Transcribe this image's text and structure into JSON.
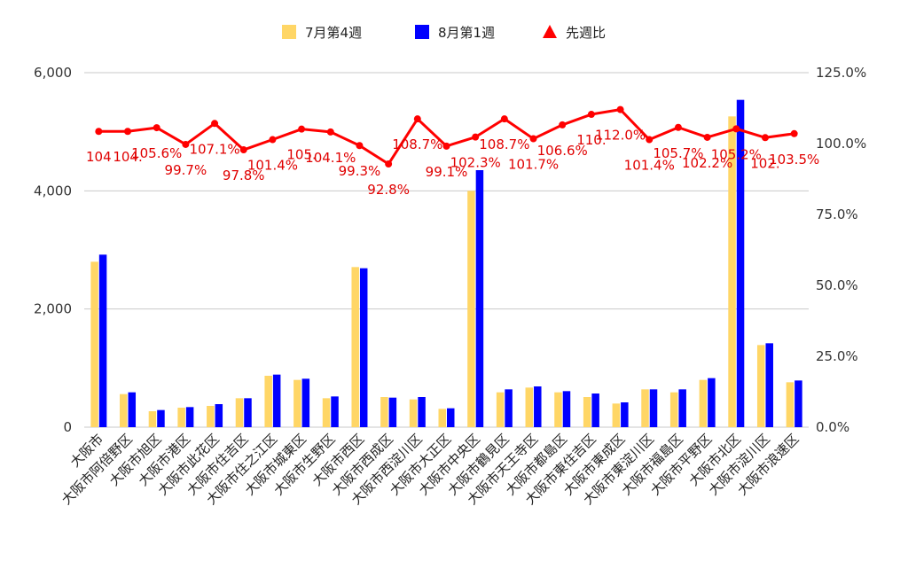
{
  "chart_data": {
    "type": "bar",
    "categories": [
      "大阪市",
      "大阪市阿倍野区",
      "大阪市旭区",
      "大阪市港区",
      "大阪市此花区",
      "大阪市住吉区",
      "大阪市住之江区",
      "大阪市城東区",
      "大阪市生野区",
      "大阪市西区",
      "大阪市西成区",
      "大阪市西淀川区",
      "大阪市大正区",
      "大阪市中央区",
      "大阪市鶴見区",
      "大阪市天王寺区",
      "大阪市都島区",
      "大阪市東住吉区",
      "大阪市東成区",
      "大阪市東淀川区",
      "大阪市福島区",
      "大阪市平野区",
      "大阪市北区",
      "大阪市淀川区",
      "大阪市浪速区"
    ],
    "series": [
      {
        "name": "7月第4週",
        "color": "#ffd666",
        "axis": "left",
        "values": [
          2800,
          560,
          270,
          330,
          360,
          490,
          870,
          800,
          490,
          2710,
          510,
          470,
          310,
          4000,
          590,
          670,
          590,
          510,
          400,
          640,
          590,
          800,
          5260,
          1390,
          760
        ]
      },
      {
        "name": "8月第1週",
        "color": "#0000ff",
        "axis": "left",
        "values": [
          2920,
          590,
          290,
          340,
          390,
          490,
          890,
          820,
          520,
          2690,
          500,
          510,
          320,
          4350,
          640,
          690,
          610,
          570,
          420,
          640,
          640,
          830,
          5540,
          1420,
          790
        ]
      },
      {
        "name": "先週比",
        "color": "#ff0000",
        "axis": "right",
        "type": "line",
        "marker": "triangle",
        "values": [
          104.3,
          104.3,
          105.6,
          99.7,
          107.1,
          97.8,
          101.4,
          105.1,
          104.1,
          99.3,
          92.8,
          108.7,
          99.1,
          102.3,
          108.7,
          101.7,
          106.6,
          110.3,
          112.0,
          101.4,
          105.7,
          102.2,
          105.2,
          102.1,
          103.5
        ],
        "labels": [
          "104",
          "104.",
          "105.6%",
          "99.7%",
          "107.1%",
          "97.8%",
          "101.4%",
          "105.",
          "104.1%",
          "99.3%",
          "92.8%",
          "108.7%",
          "99.1%",
          "102.3%",
          "108.7%",
          "101.7%",
          "106.6%",
          "110.",
          "112.0%",
          "101.4%",
          "105.7%",
          "102.2%",
          "105.2%",
          "102.",
          "103.5%"
        ]
      }
    ],
    "y_left": {
      "min": 0,
      "max": 6000,
      "ticks": [
        "0",
        "2,000",
        "4,000",
        "6,000"
      ]
    },
    "y_right": {
      "min": 0,
      "max": 125,
      "ticks": [
        "0.0%",
        "25.0%",
        "50.0%",
        "75.0%",
        "100.0%",
        "125.0%"
      ]
    },
    "grid": true,
    "legend": "top-center"
  }
}
